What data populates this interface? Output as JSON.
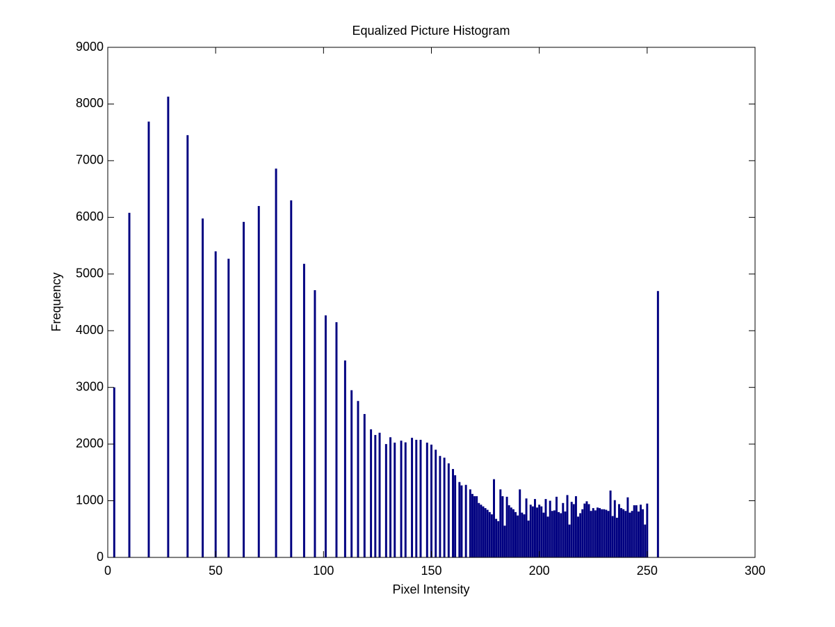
{
  "chart_data": {
    "type": "bar",
    "title": "Equalized Picture Histogram",
    "xlabel": "Pixel Intensity",
    "ylabel": "Frequency",
    "color": "#000080",
    "x": [
      3,
      10,
      19,
      28,
      37,
      44,
      50,
      56,
      63,
      70,
      78,
      85,
      91,
      96,
      101,
      106,
      110,
      113,
      116,
      119,
      122,
      124,
      126,
      129,
      131,
      133,
      136,
      138,
      141,
      143,
      145,
      148,
      150,
      152,
      154,
      156,
      158,
      160,
      161,
      163,
      164,
      166,
      168,
      169,
      170,
      171,
      172,
      173,
      174,
      175,
      176,
      177,
      178,
      179,
      180,
      181,
      182,
      183,
      184,
      185,
      186,
      187,
      188,
      189,
      190,
      191,
      192,
      193,
      194,
      195,
      196,
      197,
      198,
      199,
      200,
      201,
      202,
      203,
      204,
      205,
      206,
      207,
      208,
      209,
      210,
      211,
      212,
      213,
      214,
      215,
      216,
      217,
      218,
      219,
      220,
      221,
      222,
      223,
      224,
      225,
      226,
      227,
      228,
      229,
      230,
      231,
      232,
      233,
      234,
      235,
      236,
      237,
      238,
      239,
      240,
      241,
      242,
      243,
      244,
      245,
      246,
      247,
      248,
      249,
      250,
      255
    ],
    "values": [
      3000,
      6080,
      7690,
      8130,
      7450,
      5980,
      5400,
      5270,
      5920,
      6200,
      6860,
      6300,
      5180,
      4715,
      4270,
      4150,
      3475,
      2950,
      2760,
      2530,
      2260,
      2160,
      2200,
      2000,
      2120,
      2025,
      2060,
      2030,
      2110,
      2075,
      2075,
      2025,
      1990,
      1900,
      1790,
      1760,
      1660,
      1560,
      1450,
      1330,
      1270,
      1280,
      1200,
      1120,
      1080,
      1080,
      960,
      930,
      900,
      870,
      840,
      800,
      760,
      1380,
      680,
      640,
      1200,
      1080,
      560,
      1070,
      920,
      880,
      850,
      800,
      740,
      1200,
      790,
      760,
      1040,
      650,
      930,
      900,
      1030,
      880,
      930,
      900,
      790,
      1030,
      720,
      1000,
      820,
      830,
      1070,
      800,
      780,
      960,
      810,
      1100,
      580,
      980,
      940,
      1080,
      720,
      780,
      850,
      950,
      990,
      940,
      820,
      870,
      830,
      880,
      870,
      850,
      850,
      840,
      820,
      1180,
      730,
      1010,
      700,
      940,
      870,
      850,
      820,
      1060,
      790,
      820,
      920,
      920,
      810,
      930,
      850,
      580,
      950,
      4700
    ],
    "xlim": [
      0,
      300
    ],
    "xticks": [
      0,
      50,
      100,
      150,
      200,
      250,
      300
    ],
    "ylim": [
      0,
      9000
    ],
    "yticks": [
      0,
      1000,
      2000,
      3000,
      4000,
      5000,
      6000,
      7000,
      8000,
      9000
    ]
  }
}
